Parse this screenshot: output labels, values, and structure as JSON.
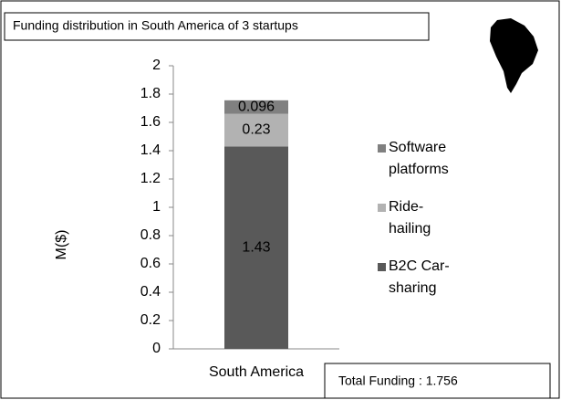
{
  "chart_data": {
    "type": "stacked_bar",
    "title": "Funding distribution in South America of  3 startups",
    "ylabel": "M($)",
    "categories": [
      "South America"
    ],
    "series": [
      {
        "name": "B2C Car-sharing",
        "color": "#595959",
        "values": [
          1.43
        ]
      },
      {
        "name": "Ride-hailing",
        "color": "#b2b2b2",
        "values": [
          0.23
        ]
      },
      {
        "name": "Software platforms",
        "color": "#808080",
        "values": [
          0.096
        ]
      }
    ],
    "ylim": [
      0,
      2
    ],
    "yticks": [
      0,
      0.2,
      0.4,
      0.6,
      0.8,
      1,
      1.2,
      1.4,
      1.6,
      1.8,
      2
    ],
    "annotation": "Total Funding : 1.756",
    "legend": "right"
  }
}
